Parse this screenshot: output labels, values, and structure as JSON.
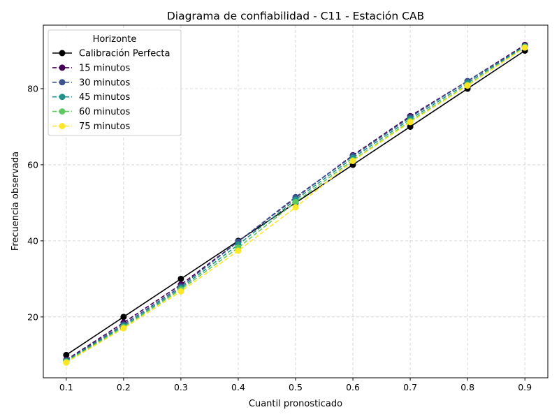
{
  "chart_data": {
    "type": "line",
    "title": "Diagrama de confiabilidad - C11 - Estación CAB",
    "xlabel": "Cuantil pronosticado",
    "ylabel": "Frecuencia observada",
    "x": [
      0.1,
      0.2,
      0.3,
      0.4,
      0.5,
      0.6,
      0.7,
      0.8,
      0.9
    ],
    "xticks": [
      "0.1",
      "0.2",
      "0.3",
      "0.4",
      "0.5",
      "0.6",
      "0.7",
      "0.8",
      "0.9"
    ],
    "yticks": [
      20,
      40,
      60,
      80
    ],
    "xlim": [
      0.06,
      0.94
    ],
    "ylim": [
      4,
      96.7
    ],
    "grid": true,
    "legend": {
      "title": "Horizonte",
      "position": "top-left"
    },
    "series": [
      {
        "name": "Calibración Perfecta",
        "values": [
          10,
          20,
          30,
          40,
          50,
          60,
          70,
          80,
          90
        ],
        "color": "#000000",
        "style": "solid"
      },
      {
        "name": "15 minutos",
        "values": [
          8.7,
          18.5,
          28.5,
          39.8,
          51.3,
          62.5,
          72.8,
          82.0,
          91.5
        ],
        "color": "#440154",
        "style": "dashed"
      },
      {
        "name": "30 minutos",
        "values": [
          8.5,
          18.0,
          28.0,
          39.8,
          51.5,
          62.3,
          72.5,
          82.0,
          91.2
        ],
        "color": "#3b528b",
        "style": "dashed"
      },
      {
        "name": "45 minutos",
        "values": [
          8.4,
          17.6,
          27.6,
          39.0,
          50.8,
          61.8,
          72.0,
          81.5,
          91.1
        ],
        "color": "#21918c",
        "style": "dashed"
      },
      {
        "name": "60 minutos",
        "values": [
          8.2,
          17.3,
          27.2,
          38.2,
          50.2,
          61.2,
          71.5,
          81.0,
          90.9
        ],
        "color": "#5ec962",
        "style": "dashed"
      },
      {
        "name": "75 minutos",
        "values": [
          8.0,
          17.0,
          26.7,
          37.4,
          48.8,
          61.0,
          71.2,
          80.8,
          90.8
        ],
        "color": "#fde725",
        "style": "dashed"
      }
    ]
  }
}
